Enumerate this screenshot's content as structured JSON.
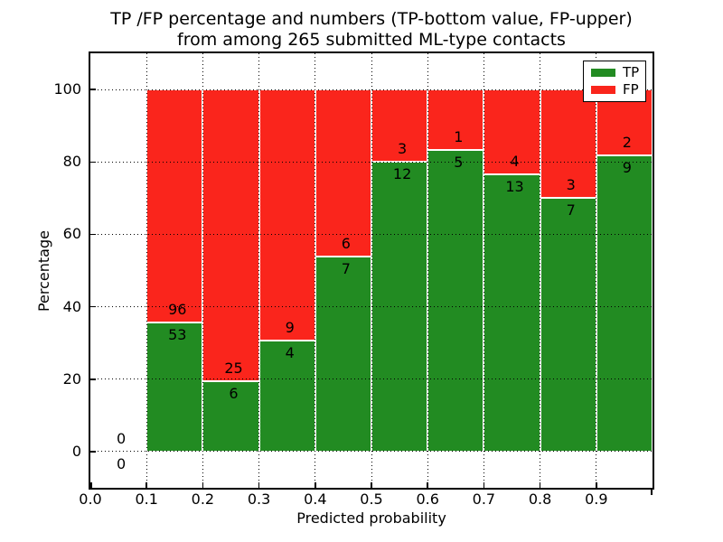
{
  "chart_data": {
    "type": "bar",
    "stacked": true,
    "title": "TP /FP percentage and numbers (TP-bottom value, FP-upper) from among 265 submitted ML-type contacts",
    "title_lines": [
      "TP /FP percentage and numbers (TP-bottom value, FP-upper)",
      "from among 265 submitted ML-type contacts"
    ],
    "xlabel": "Predicted probability",
    "ylabel": "Percentage",
    "xlim": [
      0.0,
      1.0
    ],
    "ylim": [
      -10,
      110
    ],
    "grid": "dotted, both axes, drawn above bars",
    "bar_width": 0.1,
    "bin_starts": [
      0.0,
      0.1,
      0.2,
      0.3,
      0.4,
      0.5,
      0.6,
      0.7,
      0.8,
      0.9
    ],
    "xticks": {
      "values": [
        0.0,
        0.1,
        0.2,
        0.3,
        0.4,
        0.5,
        0.6,
        0.7,
        0.8,
        0.9
      ],
      "labels": [
        "0.0",
        "0.1",
        "0.2",
        "0.3",
        "0.4",
        "0.5",
        "0.6",
        "0.7",
        "0.8",
        "0.9"
      ]
    },
    "yticks": {
      "values": [
        0,
        20,
        40,
        60,
        80,
        100
      ],
      "labels": [
        "0",
        "20",
        "40",
        "60",
        "80",
        "100"
      ]
    },
    "series": [
      {
        "name": "TP",
        "color": "#228B22",
        "counts": [
          0,
          53,
          6,
          4,
          7,
          12,
          5,
          13,
          7,
          9
        ]
      },
      {
        "name": "FP",
        "color": "#FA251C",
        "counts": [
          0,
          96,
          25,
          9,
          6,
          3,
          1,
          4,
          3,
          2
        ]
      }
    ],
    "annotation_rule": "FP count printed above TP/FP boundary, TP count printed below it; bars stacked to 100%",
    "total_contacts": 265,
    "legend_position": "upper right"
  },
  "legend": {
    "items": [
      {
        "label": "TP",
        "color": "#228B22"
      },
      {
        "label": "FP",
        "color": "#FA251C"
      }
    ]
  },
  "colors": {
    "tp_green": "#228B22",
    "fp_red": "#FA251C",
    "background": "#ffffff",
    "axis": "#000000"
  }
}
